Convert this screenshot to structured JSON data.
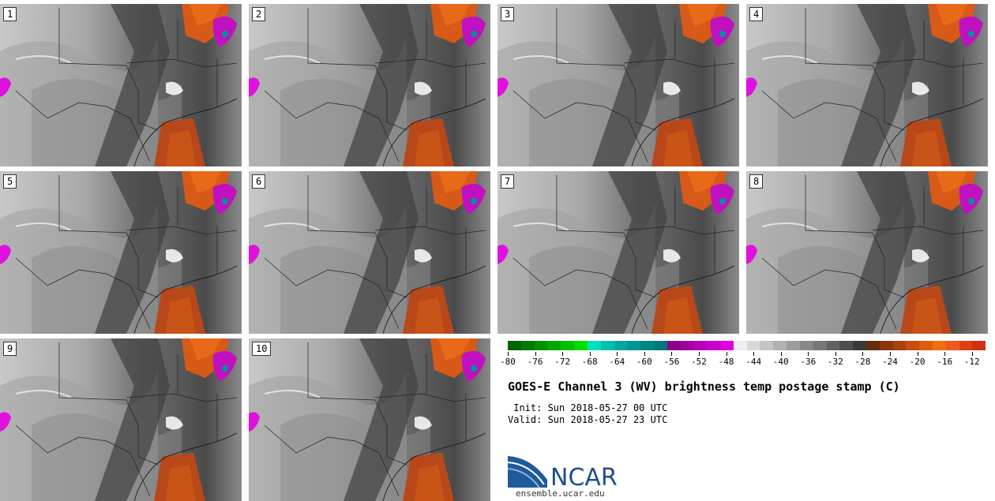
{
  "panels": [
    {
      "label": "1"
    },
    {
      "label": "2"
    },
    {
      "label": "3"
    },
    {
      "label": "4"
    },
    {
      "label": "5"
    },
    {
      "label": "6"
    },
    {
      "label": "7"
    },
    {
      "label": "8"
    },
    {
      "label": "9"
    },
    {
      "label": "10"
    }
  ],
  "colorbar": {
    "colors": [
      "#006400",
      "#007a00",
      "#009100",
      "#00a800",
      "#00c000",
      "#00dd00",
      "#00e0c0",
      "#00c0b0",
      "#00a8a0",
      "#009595",
      "#008585",
      "#00757a",
      "#8a008a",
      "#a000a0",
      "#b800b8",
      "#cc00cc",
      "#e000e0",
      "#eeeeee",
      "#d8d8d8",
      "#c4c4c4",
      "#b0b0b0",
      "#9c9c9c",
      "#888888",
      "#767676",
      "#626262",
      "#4e4e4e",
      "#3a3a3a",
      "#6a2a10",
      "#8a3510",
      "#a84010",
      "#c84c10",
      "#e05a10",
      "#f07010",
      "#f05820",
      "#e04010",
      "#d03010"
    ],
    "tick_labels": [
      "-80",
      "-76",
      "-72",
      "-68",
      "-64",
      "-60",
      "-56",
      "-52",
      "-48",
      "-44",
      "-40",
      "-36",
      "-32",
      "-28",
      "-24",
      "-20",
      "-16",
      "-12"
    ],
    "min": -80,
    "max": -10
  },
  "title": "GOES-E Channel 3 (WV) brightness temp postage stamp (C)",
  "init": " Init: Sun 2018-05-27 00 UTC",
  "valid": "Valid: Sun 2018-05-27 23 UTC",
  "logo": {
    "name": "NCAR",
    "url": "ensemble.ucar.edu"
  }
}
